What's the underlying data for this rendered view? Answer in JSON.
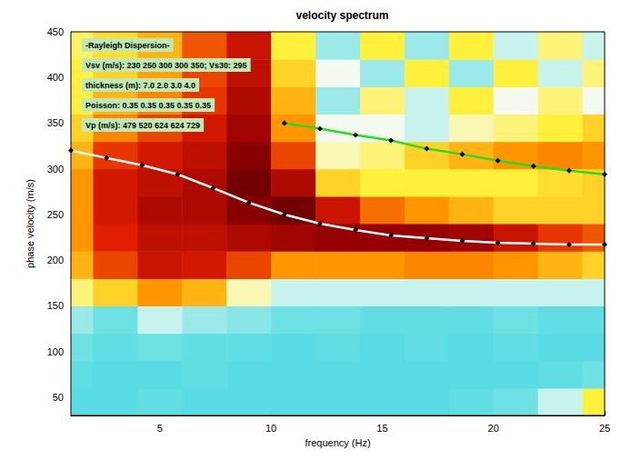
{
  "chart_data": {
    "type": "line",
    "title": "velocity spectrum",
    "x_label": "frequency (Hz)",
    "y_label": "phase velocity (m/s)",
    "xlim": [
      1,
      25
    ],
    "xticks": [
      5,
      10,
      15,
      20,
      25
    ],
    "ylim": [
      30,
      450
    ],
    "yticks": [
      50,
      100,
      150,
      200,
      250,
      300,
      350,
      400,
      450
    ],
    "grid": false,
    "annotations": [
      "-Rayleigh Dispersion-",
      "Vsv (m/s): 230 250 300 300 350; Vs30: 295",
      "thickness (m): 7.0 2.0 3.0 4.0",
      "Poisson: 0.35 0.35 0.35 0.35 0.35",
      "Vp (m/s): 479 520 624 624 729"
    ],
    "spectrum": {
      "x": [
        1,
        3,
        5,
        7,
        9,
        11,
        13,
        15,
        17,
        19,
        21,
        23,
        25
      ],
      "y": [
        45,
        75,
        105,
        135,
        165,
        195,
        225,
        255,
        285,
        315,
        345,
        375,
        405,
        435
      ],
      "zlim": [
        0,
        1
      ],
      "z": [
        [
          0.1,
          0.1,
          0.12,
          0.1,
          0.1,
          0.1,
          0.1,
          0.1,
          0.1,
          0.12,
          0.15,
          0.25,
          0.45
        ],
        [
          0.12,
          0.1,
          0.1,
          0.12,
          0.1,
          0.1,
          0.1,
          0.1,
          0.1,
          0.1,
          0.1,
          0.12,
          0.15
        ],
        [
          0.15,
          0.12,
          0.15,
          0.12,
          0.12,
          0.1,
          0.12,
          0.1,
          0.12,
          0.1,
          0.12,
          0.1,
          0.1
        ],
        [
          0.2,
          0.15,
          0.25,
          0.2,
          0.18,
          0.15,
          0.15,
          0.12,
          0.12,
          0.12,
          0.15,
          0.12,
          0.12
        ],
        [
          0.4,
          0.5,
          0.6,
          0.55,
          0.35,
          0.25,
          0.25,
          0.25,
          0.25,
          0.25,
          0.25,
          0.25,
          0.25
        ],
        [
          0.55,
          0.7,
          0.8,
          0.78,
          0.7,
          0.6,
          0.6,
          0.6,
          0.62,
          0.62,
          0.6,
          0.55,
          0.5
        ],
        [
          0.6,
          0.75,
          0.82,
          0.82,
          0.85,
          0.88,
          0.9,
          0.9,
          0.9,
          0.88,
          0.8,
          0.72,
          0.68
        ],
        [
          0.6,
          0.78,
          0.85,
          0.85,
          0.92,
          0.95,
          0.8,
          0.65,
          0.6,
          0.55,
          0.5,
          0.5,
          0.5
        ],
        [
          0.6,
          0.78,
          0.82,
          0.85,
          0.95,
          0.85,
          0.5,
          0.45,
          0.45,
          0.45,
          0.45,
          0.48,
          0.5
        ],
        [
          0.55,
          0.72,
          0.78,
          0.82,
          0.92,
          0.7,
          0.35,
          0.4,
          0.5,
          0.55,
          0.6,
          0.62,
          0.6
        ],
        [
          0.5,
          0.62,
          0.7,
          0.78,
          0.88,
          0.6,
          0.3,
          0.3,
          0.25,
          0.35,
          0.4,
          0.45,
          0.5
        ],
        [
          0.45,
          0.55,
          0.62,
          0.72,
          0.85,
          0.55,
          0.2,
          0.4,
          0.25,
          0.45,
          0.3,
          0.4,
          0.3
        ],
        [
          0.45,
          0.5,
          0.58,
          0.7,
          0.82,
          0.5,
          0.3,
          0.2,
          0.45,
          0.2,
          0.45,
          0.25,
          0.4
        ],
        [
          0.42,
          0.48,
          0.55,
          0.68,
          0.8,
          0.45,
          0.2,
          0.45,
          0.2,
          0.45,
          0.25,
          0.4,
          0.25
        ]
      ]
    },
    "series": [
      {
        "color": "#ffffff",
        "marker": "diamond",
        "x": [
          1,
          2.6,
          4.2,
          5.8,
          7.4,
          9.0,
          10.6,
          12.2,
          13.8,
          15.4,
          17.0,
          18.6,
          20.2,
          21.8,
          23.4,
          25.0
        ],
        "values": [
          320,
          312,
          304,
          294,
          279,
          263,
          250,
          240,
          233,
          227,
          224,
          221,
          219,
          218,
          217,
          217
        ]
      },
      {
        "color": "#22dd22",
        "marker": "diamond",
        "x": [
          10.6,
          12.2,
          13.8,
          15.4,
          17.0,
          18.6,
          20.2,
          21.8,
          23.4,
          25.0
        ],
        "values": [
          350,
          344,
          337,
          331,
          322,
          316,
          309,
          303,
          298,
          294
        ]
      }
    ]
  }
}
